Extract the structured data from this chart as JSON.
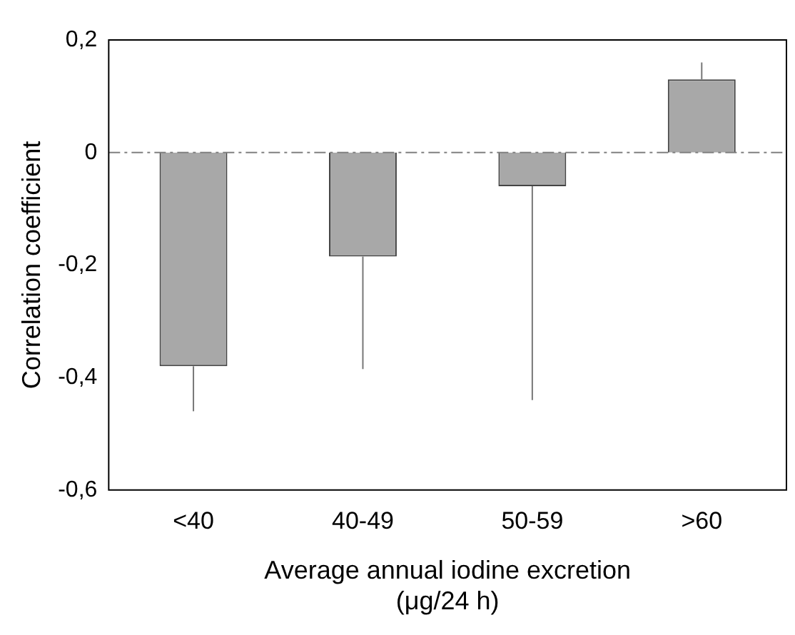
{
  "chart_data": {
    "type": "bar",
    "xlabel": "Average annual iodine excretion\n(μg/24 h)",
    "ylabel": "Correlation coefficient",
    "categories": [
      "<40",
      "40-49",
      "50-59",
      ">60"
    ],
    "values": [
      -0.38,
      -0.185,
      -0.06,
      0.13
    ],
    "color": "#a8a8a8",
    "errors": [
      [
        -0.46,
        -0.38
      ],
      [
        -0.385,
        -0.185
      ],
      [
        -0.44,
        -0.06
      ],
      [
        0.13,
        0.16
      ]
    ],
    "ylim": [
      -0.6,
      0.2
    ],
    "yticks": [
      {
        "value": -0.6,
        "label": "-0,6"
      },
      {
        "value": -0.4,
        "label": "-0,4"
      },
      {
        "value": -0.2,
        "label": "-0,2"
      },
      {
        "value": 0,
        "label": "0"
      },
      {
        "value": 0.2,
        "label": "0,2"
      }
    ],
    "ref_lines": [
      {
        "axis": "y",
        "value": 0,
        "color": "#808080",
        "line_style": "dashdot"
      }
    ],
    "grid": false,
    "legend": false
  }
}
